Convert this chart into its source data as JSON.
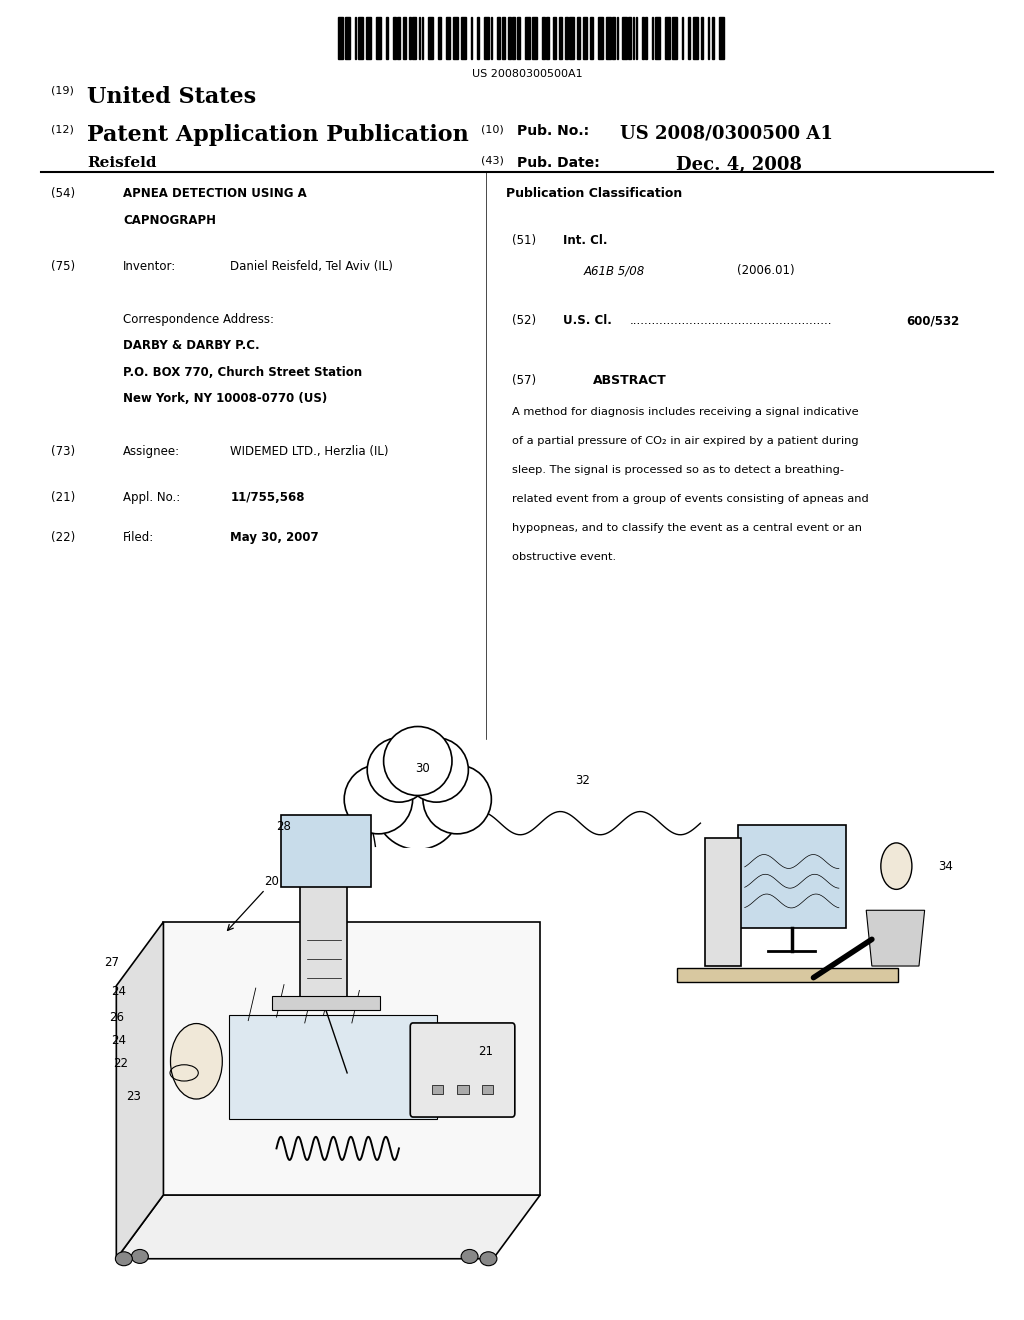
{
  "background_color": "#ffffff",
  "barcode_text": "US 20080300500A1",
  "header": {
    "tag19": "(19)",
    "united_states": "United States",
    "tag12": "(12)",
    "patent_app_pub": "Patent Application Publication",
    "tag10": "(10)",
    "pub_no_label": "Pub. No.:",
    "pub_no": "US 2008/0300500 A1",
    "inventor_name": "Reisfeld",
    "tag43": "(43)",
    "pub_date_label": "Pub. Date:",
    "pub_date": "Dec. 4, 2008"
  },
  "left_col": {
    "tag54": "(54)",
    "title_line1": "APNEA DETECTION USING A",
    "title_line2": "CAPNOGRAPH",
    "tag75": "(75)",
    "inventor_label": "Inventor:",
    "inventor": "Daniel Reisfeld, Tel Aviv (IL)",
    "corr_addr": "Correspondence Address:",
    "firm1": "DARBY & DARBY P.C.",
    "firm2": "P.O. BOX 770, Church Street Station",
    "firm3": "New York, NY 10008-0770 (US)",
    "tag73": "(73)",
    "assignee_label": "Assignee:",
    "assignee": "WIDEMED LTD., Herzlia (IL)",
    "tag21": "(21)",
    "appl_label": "Appl. No.:",
    "appl_no": "11/755,568",
    "tag22": "(22)",
    "filed_label": "Filed:",
    "filed": "May 30, 2007"
  },
  "right_col": {
    "pub_class_title": "Publication Classification",
    "tag51": "(51)",
    "int_cl_label": "Int. Cl.",
    "int_cl_code": "A61B 5/08",
    "int_cl_year": "(2006.01)",
    "tag52": "(52)",
    "us_cl_label": "U.S. Cl.",
    "us_cl_dots": "......................................................",
    "us_cl_value": "600/532",
    "tag57": "(57)",
    "abstract_title": "ABSTRACT",
    "abstract_lines": [
      "A method for diagnosis includes receiving a signal indicative",
      "of a partial pressure of CO₂ in air expired by a patient during",
      "sleep. The signal is processed so as to detect a breathing-",
      "related event from a group of events consisting of apneas and",
      "hypopneas, and to classify the event as a central event or an",
      "obstructive event."
    ]
  }
}
